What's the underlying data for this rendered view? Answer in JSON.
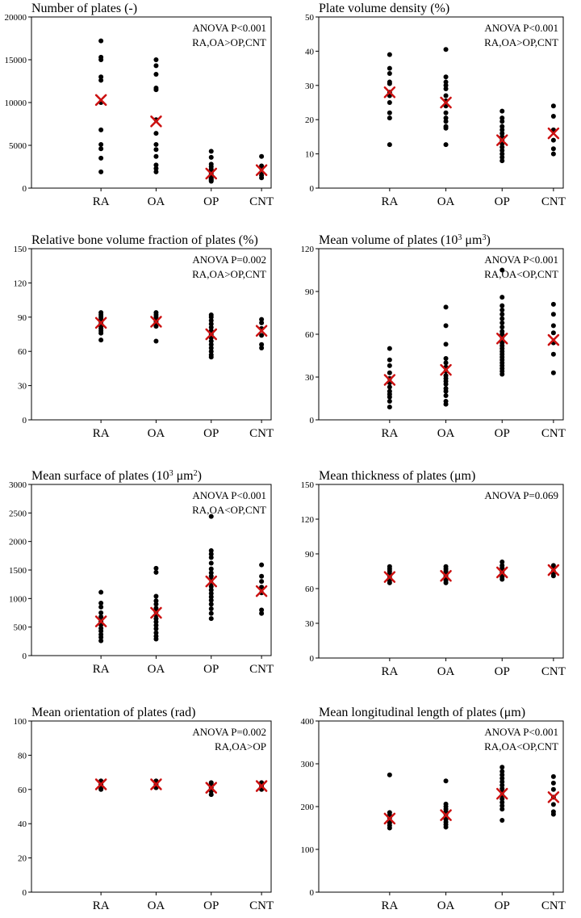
{
  "colors": {
    "dot": "#000000",
    "mean_marker": "#cc1111",
    "axis": "#000000"
  },
  "chart_data": [
    {
      "type": "scatter",
      "title": "Number of plates (-)",
      "categories": [
        "RA",
        "OA",
        "OP",
        "CNT"
      ],
      "ylim": [
        0,
        20000
      ],
      "yticks": [
        0,
        5000,
        10000,
        15000,
        20000
      ],
      "annotation": [
        "ANOVA P<0.001",
        "RA,OA>OP,CNT"
      ],
      "points": [
        [
          17200,
          15300,
          15000,
          13000,
          12600,
          10000,
          6800,
          5100,
          4600,
          3500,
          1900
        ],
        [
          15000,
          14300,
          13300,
          11700,
          11500,
          8000,
          6400,
          5100,
          4500,
          3700,
          2700,
          2300,
          1900
        ],
        [
          4300,
          3600,
          2800,
          2500,
          2200,
          2000,
          1800,
          1600,
          1400,
          1200,
          1100,
          1000,
          900,
          800
        ],
        [
          3700,
          2600,
          2300,
          1800,
          1500,
          1200
        ]
      ],
      "means": [
        10300,
        7800,
        1700,
        2100
      ]
    },
    {
      "type": "scatter",
      "title": "Plate volume density (%)",
      "categories": [
        "RA",
        "OA",
        "OP",
        "CNT"
      ],
      "ylim": [
        0,
        50
      ],
      "yticks": [
        0,
        10,
        20,
        30,
        40,
        50
      ],
      "annotation": [
        "ANOVA P<0.001",
        "RA,OA>OP,CNT"
      ],
      "points": [
        [
          39,
          35,
          33.5,
          31,
          30.5,
          28,
          27,
          25,
          22,
          20.5,
          12.7
        ],
        [
          40.5,
          32.5,
          31,
          30,
          29,
          27,
          25.5,
          24,
          22,
          20.5,
          19.5,
          18,
          17.5,
          12.7
        ],
        [
          22.5,
          20.5,
          19.5,
          18,
          17,
          16,
          15,
          14,
          13,
          12,
          11,
          10,
          9,
          8
        ],
        [
          24,
          21,
          17,
          14,
          11.5,
          10
        ]
      ],
      "means": [
        28,
        25,
        14,
        16
      ]
    },
    {
      "type": "scatter",
      "title": "Relative bone volume fraction of plates (%)",
      "categories": [
        "RA",
        "OA",
        "OP",
        "CNT"
      ],
      "ylim": [
        0,
        150
      ],
      "yticks": [
        0,
        30,
        60,
        90,
        120,
        150
      ],
      "annotation": [
        "ANOVA P=0.002",
        "RA,OA>OP,CNT"
      ],
      "points": [
        [
          94,
          92,
          90,
          88,
          86,
          84,
          82,
          80,
          78,
          76,
          70
        ],
        [
          94,
          92,
          90,
          88,
          86,
          84,
          82,
          69
        ],
        [
          92,
          90,
          87,
          84,
          81,
          78,
          75,
          72,
          69,
          66,
          63,
          60,
          57,
          55
        ],
        [
          88,
          85,
          80,
          74,
          66,
          63
        ]
      ],
      "means": [
        85,
        86,
        75,
        78
      ]
    },
    {
      "type": "scatter",
      "title_parts": [
        "Mean volume of plates (10",
        "3",
        " μm",
        "3",
        ")"
      ],
      "categories": [
        "RA",
        "OA",
        "OP",
        "CNT"
      ],
      "ylim": [
        0,
        120
      ],
      "yticks": [
        0,
        30,
        60,
        90,
        120
      ],
      "annotation": [
        "ANOVA P<0.001",
        "RA,OA<OP,CNT"
      ],
      "points": [
        [
          50,
          42,
          38,
          33,
          29,
          26,
          23,
          20,
          18,
          16,
          13,
          9
        ],
        [
          79,
          66,
          53,
          43,
          40,
          37,
          34,
          31,
          29,
          27,
          25,
          22,
          20,
          17,
          13,
          11
        ],
        [
          105,
          86,
          80,
          77,
          74,
          71,
          68,
          65,
          62,
          60,
          58,
          56,
          54,
          52,
          50,
          48,
          46,
          44,
          42,
          40,
          38,
          36,
          34,
          32
        ],
        [
          81,
          74,
          66,
          61,
          54,
          46,
          33
        ]
      ],
      "means": [
        28,
        35,
        57,
        56
      ]
    },
    {
      "type": "scatter",
      "title_parts": [
        "Mean surface of plates (10",
        "3",
        " μm",
        "2",
        ")"
      ],
      "categories": [
        "RA",
        "OA",
        "OP",
        "CNT"
      ],
      "ylim": [
        0,
        3000
      ],
      "yticks": [
        0,
        500,
        1000,
        1500,
        2000,
        2500,
        3000
      ],
      "annotation": [
        "ANOVA P<0.001",
        "RA,OA<OP,CNT"
      ],
      "points": [
        [
          1110,
          920,
          850,
          750,
          680,
          600,
          540,
          480,
          430,
          370,
          320,
          260
        ],
        [
          1530,
          1460,
          1040,
          960,
          900,
          830,
          770,
          710,
          650,
          590,
          530,
          470,
          400,
          340,
          290
        ],
        [
          2440,
          1840,
          1780,
          1720,
          1620,
          1520,
          1450,
          1390,
          1330,
          1270,
          1210,
          1150,
          1090,
          1030,
          970,
          900,
          820,
          740,
          650
        ],
        [
          1590,
          1390,
          1300,
          1200,
          1100,
          800,
          740
        ]
      ],
      "means": [
        600,
        750,
        1300,
        1130
      ]
    },
    {
      "type": "scatter",
      "title": "Mean thickness of plates (μm)",
      "categories": [
        "RA",
        "OA",
        "OP",
        "CNT"
      ],
      "ylim": [
        0,
        150
      ],
      "yticks": [
        0,
        30,
        60,
        90,
        120,
        150
      ],
      "annotation": [
        "ANOVA P=0.069"
      ],
      "points": [
        [
          79,
          77,
          75,
          73,
          71,
          69,
          67,
          65
        ],
        [
          79,
          77,
          75,
          73,
          71,
          69,
          67,
          65
        ],
        [
          83,
          80,
          78,
          76,
          74,
          72,
          70,
          68
        ],
        [
          80,
          78,
          75,
          73,
          71
        ]
      ],
      "means": [
        70,
        71,
        74,
        76
      ]
    },
    {
      "type": "scatter",
      "title": "Mean orientation of plates (rad)",
      "categories": [
        "RA",
        "OA",
        "OP",
        "CNT"
      ],
      "ylim": [
        0,
        100
      ],
      "yticks": [
        0,
        20,
        40,
        60,
        80,
        100
      ],
      "annotation": [
        "ANOVA P=0.002",
        "RA,OA>OP"
      ],
      "points": [
        [
          65,
          64,
          63,
          62,
          61,
          60
        ],
        [
          65,
          64,
          63,
          62,
          61
        ],
        [
          64,
          63,
          62,
          61,
          60,
          59,
          57
        ],
        [
          64,
          63,
          62,
          61,
          60
        ]
      ],
      "means": [
        63,
        63,
        61,
        62
      ]
    },
    {
      "type": "scatter",
      "title": "Mean longitudinal length of plates (μm)",
      "categories": [
        "RA",
        "OA",
        "OP",
        "CNT"
      ],
      "ylim": [
        0,
        400
      ],
      "yticks": [
        0,
        100,
        200,
        300,
        400
      ],
      "annotation": [
        "ANOVA P<0.001",
        "RA,OA<OP,CNT"
      ],
      "points": [
        [
          274,
          186,
          180,
          174,
          168,
          162,
          156,
          150
        ],
        [
          260,
          206,
          200,
          194,
          188,
          182,
          176,
          170,
          164,
          158,
          152
        ],
        [
          292,
          282,
          274,
          266,
          258,
          250,
          242,
          234,
          226,
          218,
          210,
          202,
          194,
          168
        ],
        [
          270,
          255,
          240,
          222,
          205,
          188,
          182
        ]
      ],
      "means": [
        172,
        180,
        230,
        222
      ]
    }
  ]
}
